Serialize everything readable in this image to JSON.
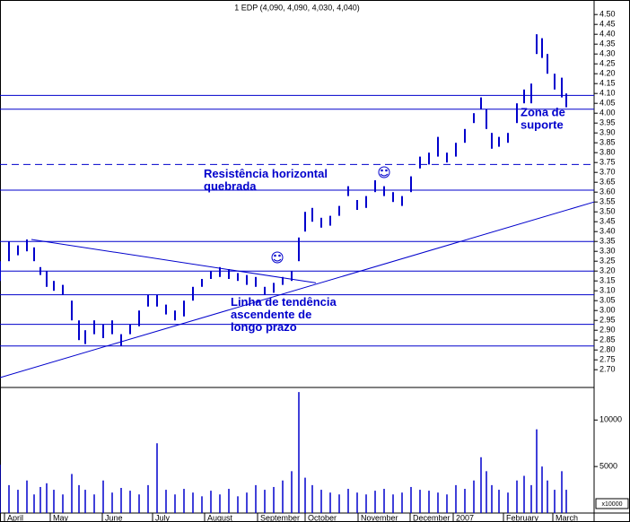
{
  "chart_data": {
    "type": "ohlc",
    "title": "1 EDP (4,090, 4,090, 4,030, 4,040)",
    "color": "#0000cc",
    "x": [
      0,
      10,
      20,
      30,
      38,
      45,
      52,
      60,
      70,
      80,
      88,
      95,
      105,
      115,
      125,
      135,
      145,
      155,
      165,
      175,
      185,
      195,
      205,
      215,
      225,
      235,
      245,
      255,
      265,
      275,
      285,
      295,
      305,
      315,
      325,
      333,
      340,
      348,
      358,
      368,
      378,
      388,
      398,
      408,
      418,
      428,
      438,
      448,
      458,
      468,
      478,
      488,
      498,
      508,
      518,
      528,
      536,
      542,
      548,
      556,
      566,
      576,
      584,
      592,
      598,
      604,
      610,
      618,
      626,
      631
    ],
    "series": [
      {
        "name": "High",
        "values": [
          3.25,
          3.35,
          3.33,
          3.36,
          3.32,
          3.22,
          3.2,
          3.15,
          3.13,
          3.05,
          2.95,
          2.9,
          2.95,
          2.93,
          2.95,
          2.88,
          2.93,
          3.0,
          3.08,
          3.08,
          3.03,
          3.0,
          3.05,
          3.12,
          3.16,
          3.2,
          3.22,
          3.21,
          3.19,
          3.18,
          3.17,
          3.12,
          3.14,
          3.17,
          3.2,
          3.37,
          3.5,
          3.52,
          3.47,
          3.48,
          3.53,
          3.63,
          3.56,
          3.58,
          3.66,
          3.63,
          3.6,
          3.58,
          3.68,
          3.78,
          3.8,
          3.88,
          3.8,
          3.85,
          3.92,
          4.0,
          4.08,
          4.02,
          3.9,
          3.88,
          3.9,
          4.05,
          4.12,
          4.15,
          4.4,
          4.38,
          4.3,
          4.2,
          4.18,
          4.1
        ]
      },
      {
        "name": "Low",
        "values": [
          3.15,
          3.25,
          3.28,
          3.3,
          3.25,
          3.18,
          3.12,
          3.1,
          3.08,
          2.95,
          2.85,
          2.83,
          2.88,
          2.86,
          2.88,
          2.82,
          2.88,
          2.92,
          3.02,
          3.02,
          2.98,
          2.95,
          2.97,
          3.05,
          3.12,
          3.16,
          3.17,
          3.16,
          3.15,
          3.13,
          3.12,
          3.08,
          3.09,
          3.13,
          3.15,
          3.25,
          3.4,
          3.45,
          3.42,
          3.43,
          3.48,
          3.58,
          3.51,
          3.52,
          3.6,
          3.58,
          3.55,
          3.53,
          3.6,
          3.72,
          3.74,
          3.78,
          3.75,
          3.78,
          3.85,
          3.95,
          4.02,
          3.92,
          3.82,
          3.83,
          3.85,
          3.95,
          4.05,
          4.05,
          4.3,
          4.28,
          4.2,
          4.12,
          4.08,
          4.03
        ]
      }
    ],
    "volume": [
      5200,
      3000,
      2500,
      3500,
      2000,
      2800,
      3200,
      2500,
      2000,
      4200,
      3000,
      2500,
      2000,
      3500,
      2200,
      2700,
      2400,
      2000,
      3000,
      7500,
      2500,
      2000,
      2600,
      2200,
      1800,
      2400,
      2000,
      2600,
      1800,
      2200,
      3000,
      2500,
      2800,
      3500,
      4500,
      13000,
      3800,
      3000,
      2500,
      2200,
      2000,
      2600,
      2200,
      2000,
      2400,
      2600,
      2000,
      2200,
      2800,
      2500,
      2400,
      2200,
      2000,
      3000,
      2600,
      3500,
      6000,
      4500,
      3000,
      2500,
      2200,
      3500,
      4000,
      3000,
      9000,
      5000,
      3500,
      2500,
      4500,
      2500
    ],
    "xlim": [
      0,
      662
    ],
    "xticks": [
      {
        "value": 5,
        "label": "April"
      },
      {
        "value": 56,
        "label": "May"
      },
      {
        "value": 114,
        "label": "June"
      },
      {
        "value": 170,
        "label": "July"
      },
      {
        "value": 228,
        "label": "August"
      },
      {
        "value": 287,
        "label": "September"
      },
      {
        "value": 340,
        "label": "October"
      },
      {
        "value": 399,
        "label": "November"
      },
      {
        "value": 457,
        "label": "December"
      },
      {
        "value": 505,
        "label": "2007"
      },
      {
        "value": 561,
        "label": "February"
      },
      {
        "value": 616,
        "label": "March"
      }
    ],
    "ylim": [
      2.61,
      4.56
    ],
    "yticks": [
      {
        "value": 2.7,
        "label": "2.70"
      },
      2.75,
      {
        "value": 2.8,
        "label": "2.80"
      },
      2.85,
      {
        "value": 2.9,
        "label": "2.90"
      },
      2.95,
      {
        "value": 3,
        "label": "3.00"
      },
      3.05,
      {
        "value": 3.1,
        "label": "3.10"
      },
      3.15,
      {
        "value": 3.2,
        "label": "3.20"
      },
      3.25,
      {
        "value": 3.3,
        "label": "3.30"
      },
      3.35,
      {
        "value": 3.4,
        "label": "3.40"
      },
      3.45,
      {
        "value": 3.5,
        "label": "3.50"
      },
      3.55,
      {
        "value": 3.6,
        "label": "3.60"
      },
      3.65,
      {
        "value": 3.7,
        "label": "3.70"
      },
      3.75,
      {
        "value": 3.8,
        "label": "3.80"
      },
      3.85,
      {
        "value": 3.9,
        "label": "3.90"
      },
      3.95,
      {
        "value": 4,
        "label": "4.00"
      },
      4.05,
      {
        "value": 4.1,
        "label": "4.10"
      },
      4.15,
      {
        "value": 4.2,
        "label": "4.20"
      },
      4.25,
      {
        "value": 4.3,
        "label": "4.30"
      },
      4.35,
      {
        "value": 4.4,
        "label": "4.40"
      },
      4.45,
      {
        "value": 4.5,
        "label": "4.50"
      }
    ],
    "y2lim": [
      0,
      13500
    ],
    "y2ticks": [
      5000,
      10000
    ],
    "y2label": "x10000",
    "levels": [
      4.09,
      4.02,
      3.61,
      3.35,
      3.2,
      3.08,
      2.93,
      2.82
    ],
    "dashed_levels": [
      3.74
    ],
    "trendlines": [
      {
        "x": [
          0,
          662
        ],
        "y": [
          2.66,
          3.55
        ]
      },
      {
        "x": [
          35,
          352
        ],
        "y": [
          3.36,
          3.14
        ]
      }
    ],
    "annotations": [
      {
        "lines": [
          "Resistência horizontal",
          "quebrada"
        ],
        "x": 227,
        "y": 3.69
      },
      {
        "lines": [
          "Linha de tendência",
          "ascendente de",
          "longo prazo"
        ],
        "x": 257,
        "y": 3.04
      },
      {
        "lines": [
          "Zona de",
          "suporte"
        ],
        "x": 580,
        "y": 4.0
      }
    ]
  }
}
